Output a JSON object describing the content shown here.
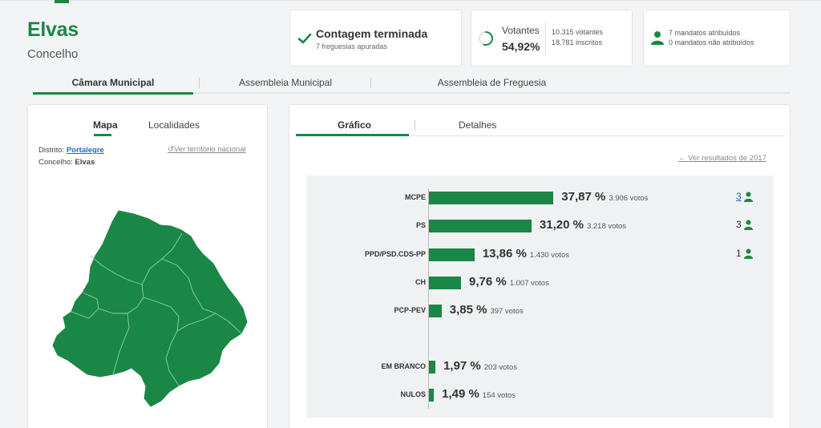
{
  "header": {
    "title": "Elvas",
    "subtitle": "Concelho"
  },
  "status_card": {
    "title": "Contagem terminada",
    "subtitle": "7 freguesias apuradas"
  },
  "turnout_card": {
    "label": "Votantes",
    "percent": "54,92%",
    "percent_value": 54.92,
    "voters": "10.315 votantes",
    "registered": "18.781 inscritos"
  },
  "mandates_card": {
    "assigned": "7 mandatos atribuídos",
    "unassigned": "0 mandatos não atribuídos"
  },
  "main_tabs": [
    "Câmara Municipal",
    "Assembleia Municipal",
    "Assembleia de Freguesia"
  ],
  "map_panel": {
    "tabs": [
      "Mapa",
      "Localidades"
    ],
    "district_label": "Distrito:",
    "district_value": "Portalegre",
    "municipality_label": "Concelho:",
    "municipality_value": "Elvas",
    "reset_link": "Ver território nacional"
  },
  "chart_panel": {
    "tabs": [
      "Gráfico",
      "Detalhes"
    ],
    "back_link": "Ver resultados de 2017"
  },
  "colors": {
    "accent": "#1a8747",
    "link": "#1a6fc7"
  },
  "chart_data": {
    "type": "bar",
    "orientation": "horizontal",
    "categories": [
      "MCPE",
      "PS",
      "PPD/PSD.CDS-PP",
      "CH",
      "PCP-PEV",
      "EM BRANCO",
      "NULOS"
    ],
    "values": [
      37.87,
      31.2,
      13.86,
      9.76,
      3.85,
      1.97,
      1.49
    ],
    "value_labels": [
      "37,87 %",
      "31,20 %",
      "13,86 %",
      "9,76 %",
      "3,85 %",
      "1,97 %",
      "1,49 %"
    ],
    "votes": [
      "3.906 votos",
      "3.218 votos",
      "1.430 votos",
      "1.007 votos",
      "397 votos",
      "203 votos",
      "154 votos"
    ],
    "seats": [
      "3",
      "3",
      "1",
      "",
      "",
      "",
      ""
    ],
    "title": "",
    "xlabel": "",
    "ylabel": "",
    "xlim": [
      0,
      100
    ],
    "grid": false
  }
}
